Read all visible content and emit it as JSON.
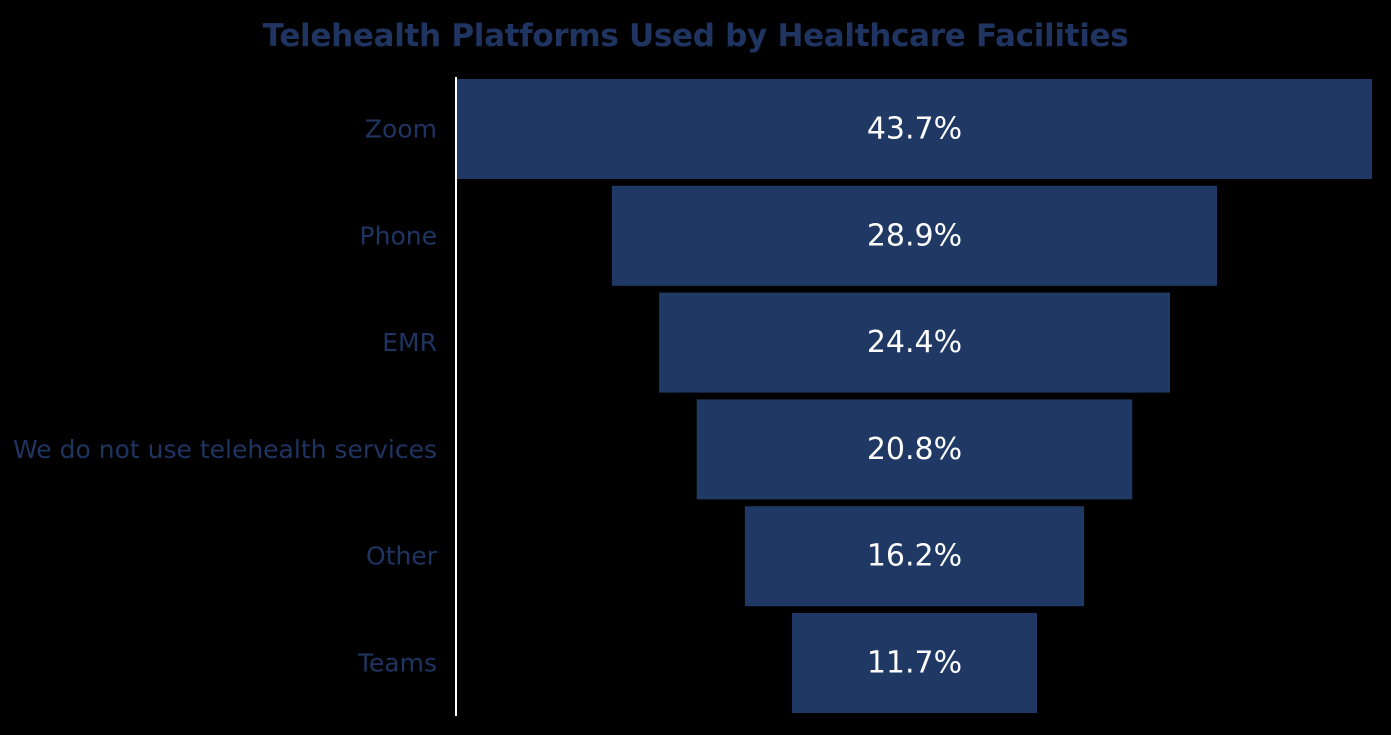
{
  "chart_data": {
    "type": "bar",
    "orientation": "horizontal-funnel",
    "title": "Telehealth Platforms Used by Healthcare Facilities",
    "categories": [
      "Zoom",
      "Phone",
      "EMR",
      "We do not use telehealth services",
      "Other",
      "Teams"
    ],
    "values": [
      43.7,
      28.9,
      24.4,
      20.8,
      16.2,
      11.7
    ],
    "value_labels": [
      "43.7%",
      "28.9%",
      "24.4%",
      "20.8%",
      "16.2%",
      "11.7%"
    ],
    "unit": "%",
    "xlabel": "",
    "ylabel": "",
    "grid": false,
    "legend": "none",
    "colors": {
      "background": "#000000",
      "bar": "#1f3864",
      "title": "#1f3460",
      "category_text": "#1f3460",
      "value_text": "#ffffff",
      "axis": "#ffffff"
    }
  }
}
